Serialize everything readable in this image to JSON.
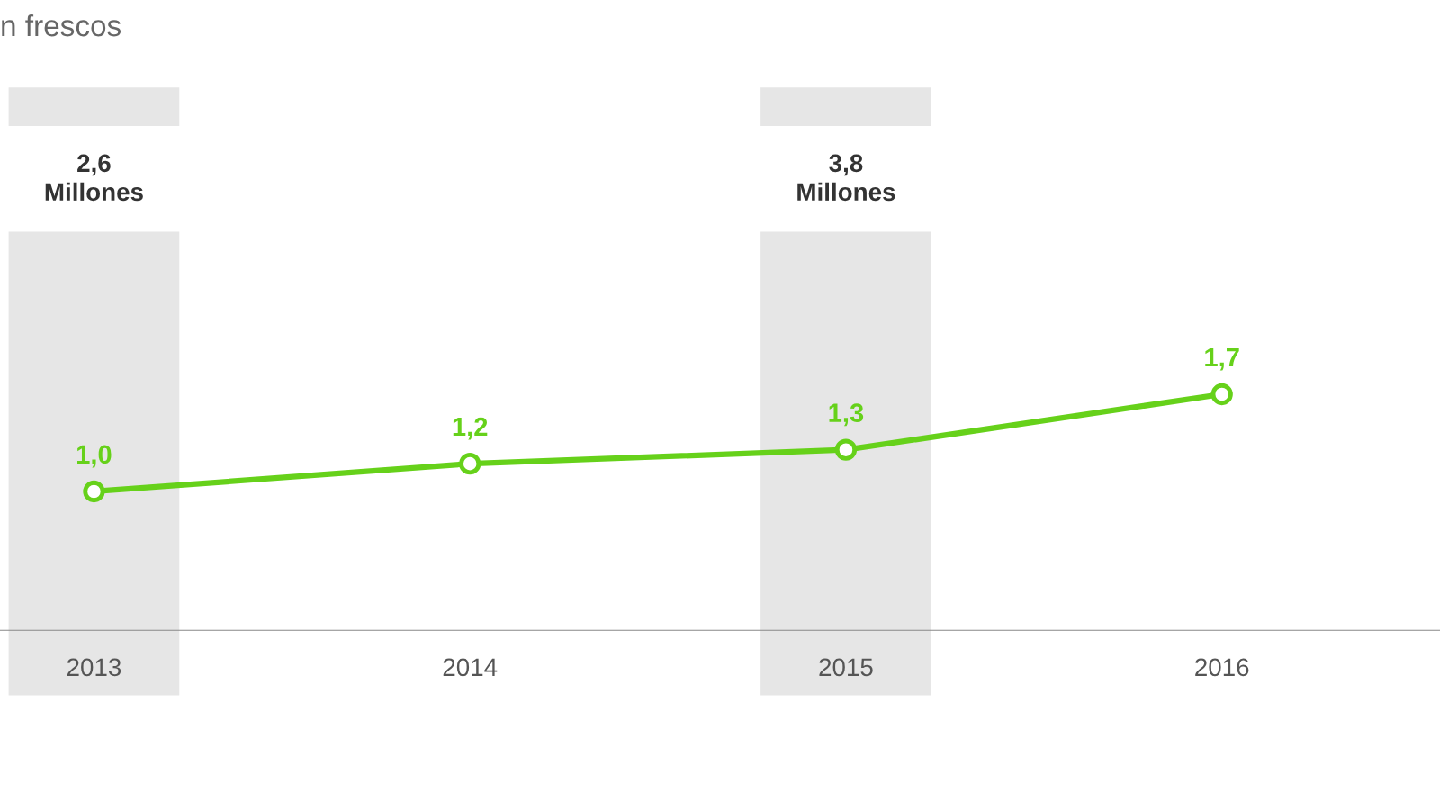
{
  "chart_data": {
    "type": "line",
    "title": "n frescos",
    "categories": [
      "2013",
      "2014",
      "2015",
      "2016"
    ],
    "series": [
      {
        "color": "#66d11a",
        "values": [
          1.0,
          1.2,
          1.3,
          1.7
        ],
        "value_labels": [
          "1,0",
          "1,2",
          "1,3",
          "1,7"
        ]
      }
    ],
    "marker": "circle",
    "line_style": "solid",
    "grid": false,
    "tick_labels": "x",
    "bands": [
      {
        "axis": "x",
        "from": "2013",
        "to": "2013",
        "label": "2,6\nMillones",
        "color": "#e6e6e6"
      },
      {
        "axis": "x",
        "from": "2015",
        "to": "2015",
        "label": "3,8\nMillones",
        "color": "#e6e6e6"
      }
    ]
  }
}
